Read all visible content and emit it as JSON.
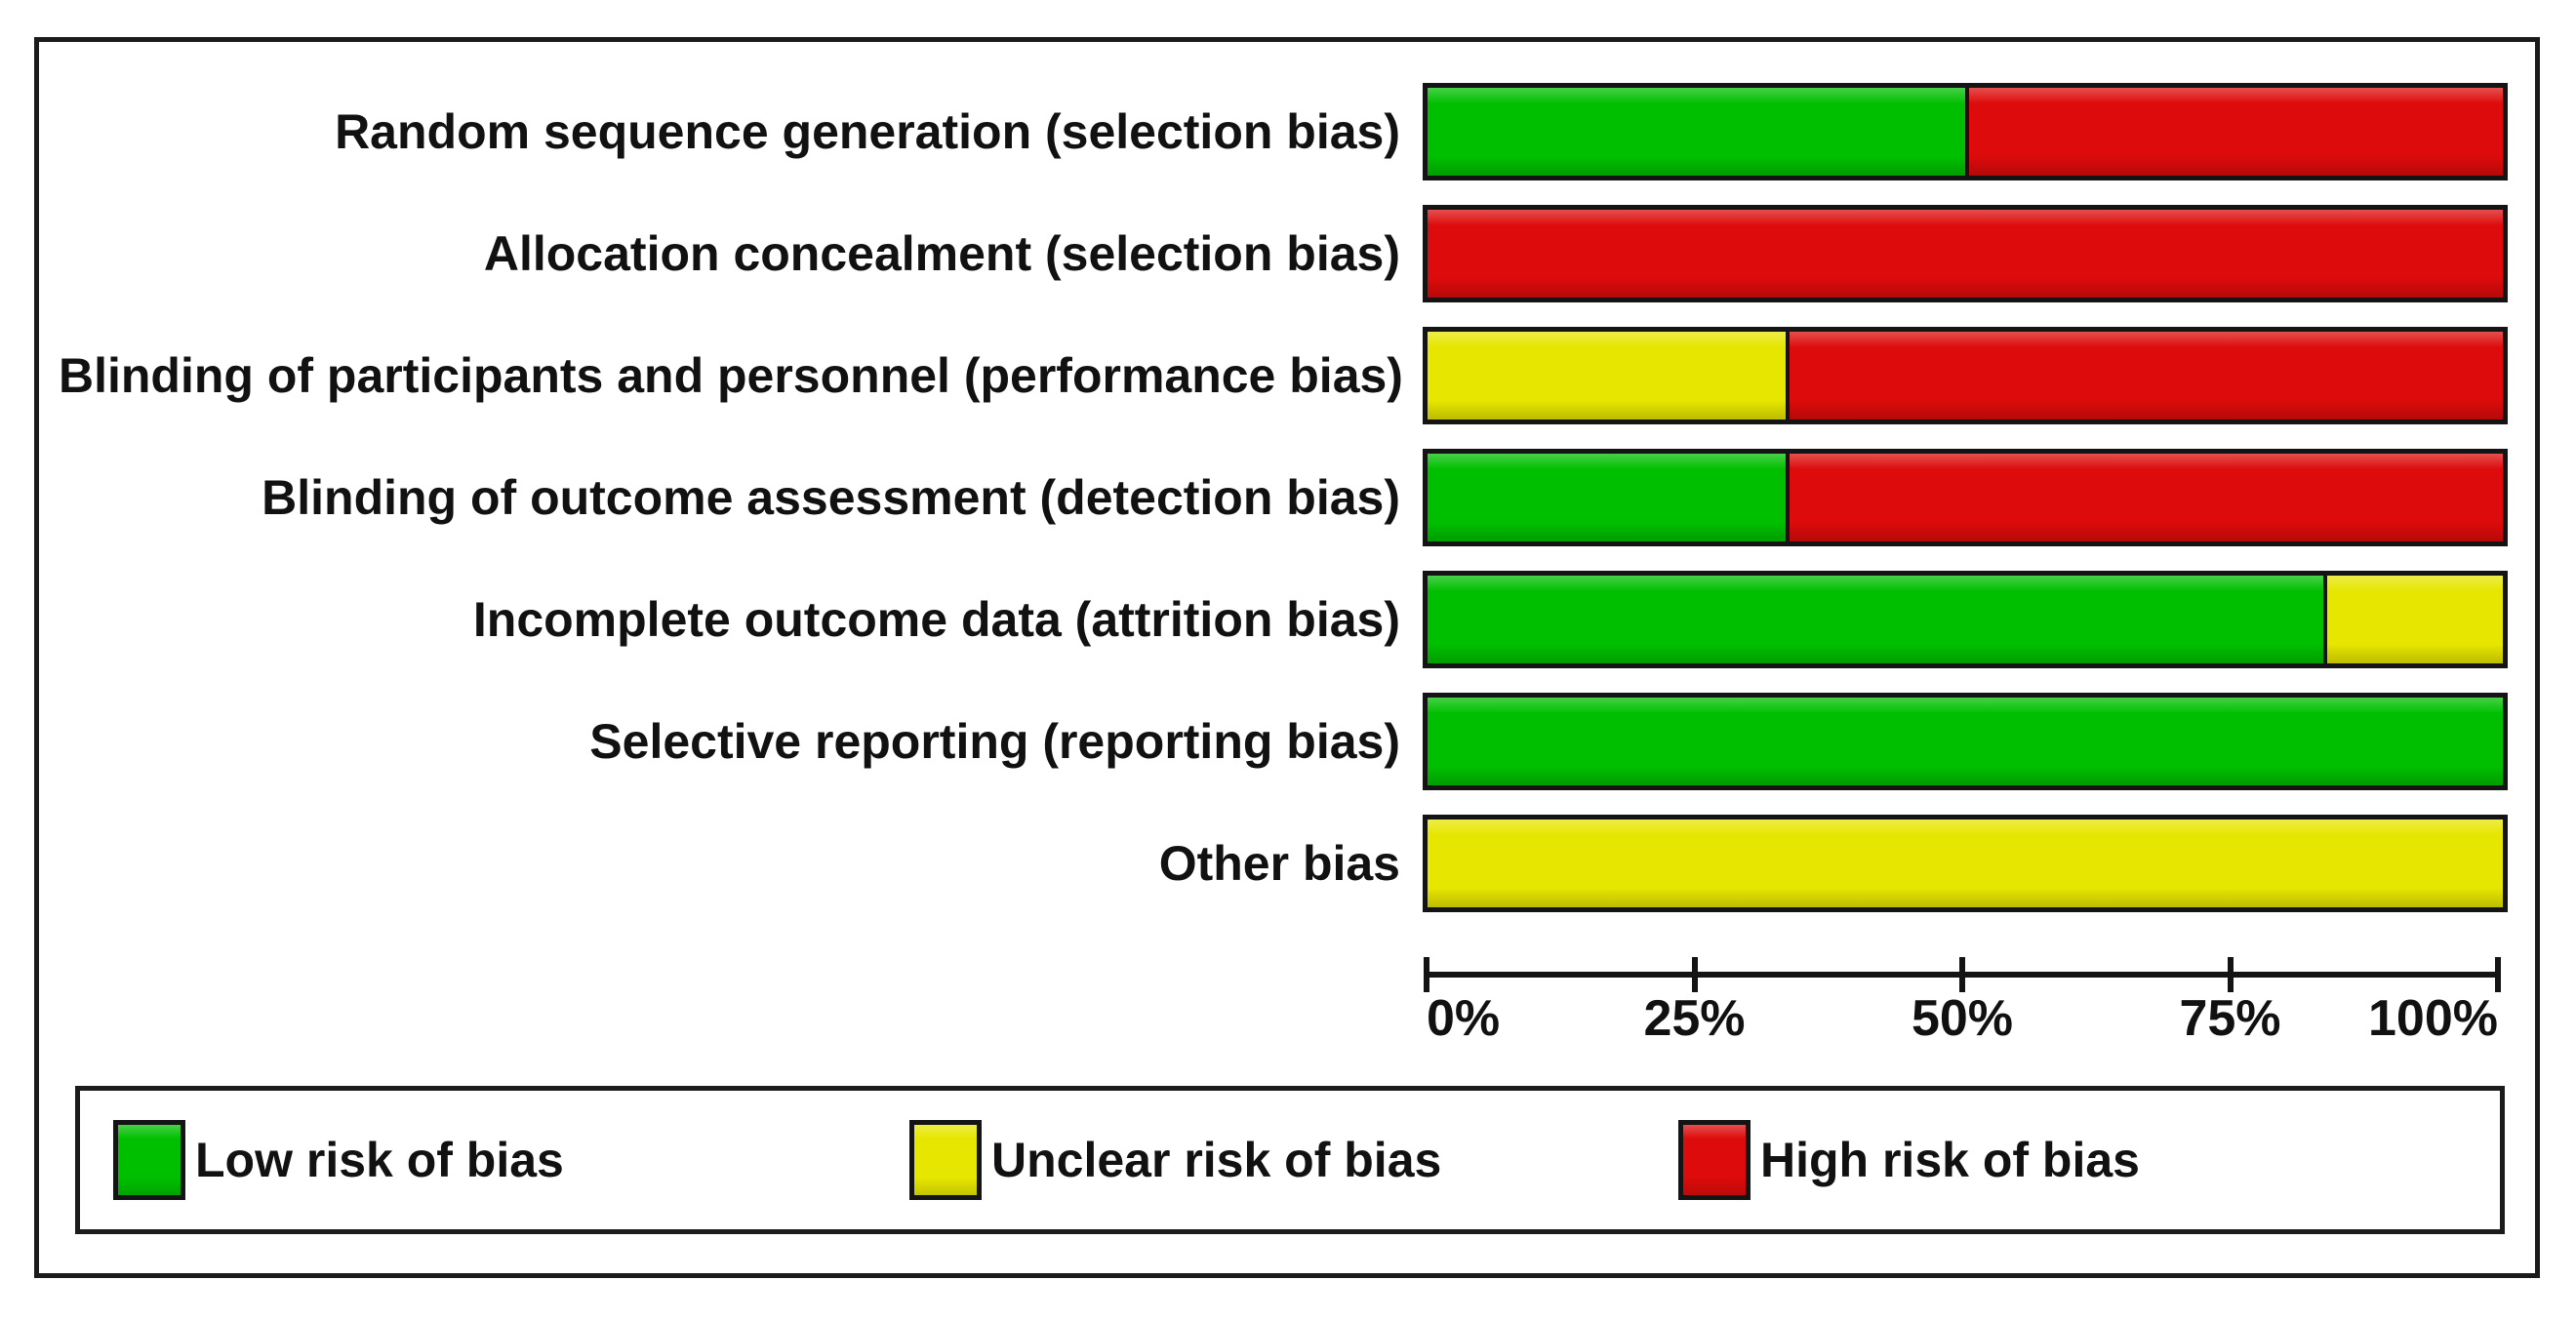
{
  "chart_data": {
    "type": "bar",
    "variant": "horizontal-stacked-percent",
    "title": "",
    "categories": [
      "Random sequence generation (selection bias)",
      "Allocation concealment (selection bias)",
      "Blinding of participants and personnel (performance bias)",
      "Blinding of outcome assessment (detection bias)",
      "Incomplete outcome data (attrition bias)",
      "Selective reporting (reporting bias)",
      "Other bias"
    ],
    "series": [
      {
        "name": "Low risk of bias",
        "color": "#00bf00",
        "values": [
          50,
          0,
          0,
          33.3,
          83.3,
          100,
          0
        ]
      },
      {
        "name": "Unclear risk of bias",
        "color": "#e6e600",
        "values": [
          0,
          0,
          33.3,
          0,
          16.7,
          0,
          100
        ]
      },
      {
        "name": "High risk of bias",
        "color": "#dd0b0b",
        "values": [
          50,
          100,
          66.7,
          66.7,
          0,
          0,
          0
        ]
      }
    ],
    "x_axis": {
      "range": [
        0,
        100
      ],
      "tick_values": [
        0,
        25,
        50,
        75,
        100
      ],
      "tick_labels": [
        "0%",
        "25%",
        "50%",
        "75%",
        "100%"
      ]
    },
    "legend": {
      "position": "bottom",
      "entries": [
        "Low risk of bias",
        "Unclear risk of bias",
        "High risk of bias"
      ]
    },
    "grid": false
  },
  "colors": {
    "low_risk": "#00bf00",
    "unclear_risk": "#e6e600",
    "high_risk": "#dd0b0b",
    "border": "#141414",
    "background": "#ffffff"
  }
}
